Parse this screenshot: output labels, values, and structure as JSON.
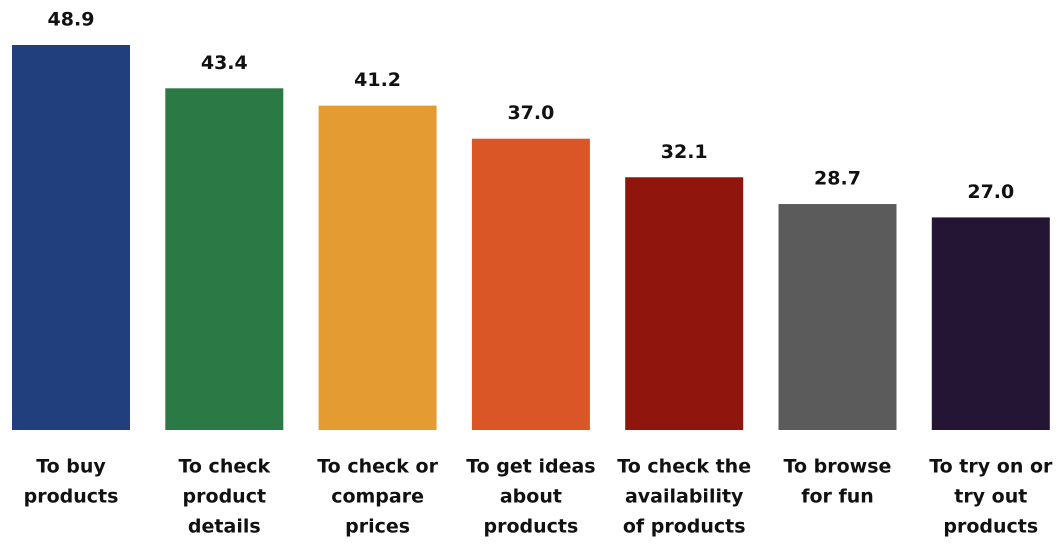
{
  "chart_data": {
    "type": "bar",
    "categories": [
      [
        "To buy",
        "products"
      ],
      [
        "To check",
        "product",
        "details"
      ],
      [
        "To check or",
        "compare",
        "prices"
      ],
      [
        "To get ideas",
        "about",
        "products"
      ],
      [
        "To check the",
        "availability",
        "of products"
      ],
      [
        "To browse",
        "for fun"
      ],
      [
        "To try on or",
        "try out",
        "products"
      ]
    ],
    "values": [
      48.9,
      43.4,
      41.2,
      37.0,
      32.1,
      28.7,
      27.0
    ],
    "value_labels": [
      "48.9",
      "43.4",
      "41.2",
      "37.0",
      "32.1",
      "28.7",
      "27.0"
    ],
    "colors": [
      "#213f7d",
      "#2b7a45",
      "#e49c32",
      "#da5626",
      "#8f150d",
      "#5b5b5b",
      "#231533"
    ]
  }
}
